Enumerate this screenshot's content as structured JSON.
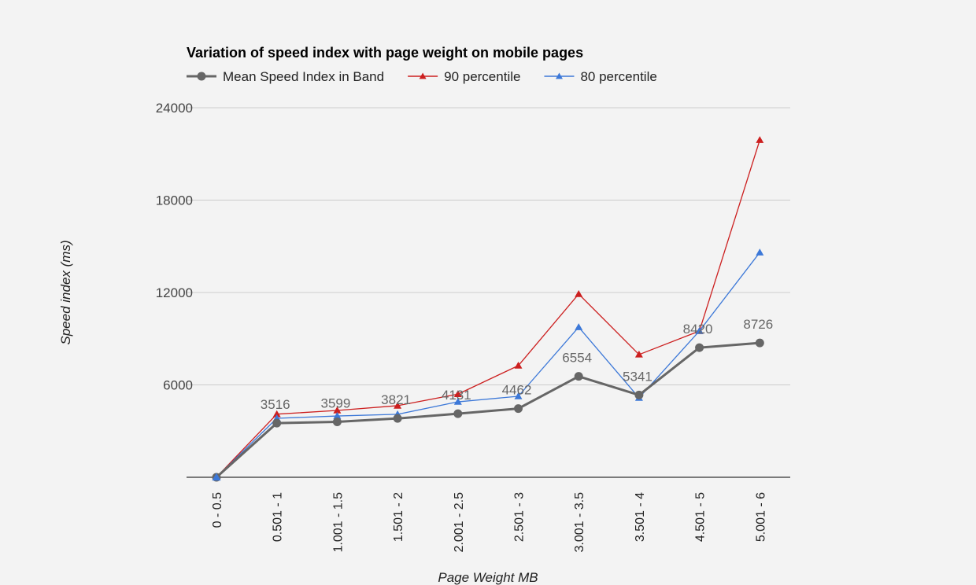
{
  "chart_data": {
    "type": "line",
    "title": "Variation of speed index with page weight on mobile pages",
    "xlabel": "Page Weight MB",
    "ylabel": "Speed index (ms)",
    "ylim": [
      0,
      24000
    ],
    "yticks": [
      6000,
      12000,
      18000,
      24000
    ],
    "grid": true,
    "legend": "top-left",
    "categories": [
      "0 - 0.5",
      "0.501 - 1",
      "1.001 - 1.5",
      "1.501 - 2",
      "2.001 - 2.5",
      "2.501 - 3",
      "3.001 - 3.5",
      "3.501 - 4",
      "4.501 - 5",
      "5.001 - 6"
    ],
    "series": [
      {
        "name": "90 percentile",
        "color": "#cc1f1f",
        "marker": "triangle",
        "values": [
          0,
          4100,
          4340,
          4650,
          5400,
          7250,
          11900,
          7970,
          9500,
          21900
        ]
      },
      {
        "name": "80 percentile",
        "color": "#3c78d8",
        "marker": "triangle",
        "values": [
          0,
          3830,
          3980,
          4090,
          4900,
          5260,
          9750,
          5160,
          9500,
          14600
        ]
      },
      {
        "name": "Mean Speed Index in Band",
        "color": "#666666",
        "marker": "circle",
        "values": [
          0,
          3516,
          3599,
          3821,
          4131,
          4462,
          6554,
          5341,
          8420,
          8726
        ],
        "data_labels": [
          "",
          "3516",
          "3599",
          "3821",
          "4131",
          "4462",
          "6554",
          "5341",
          "8420",
          "8726"
        ]
      }
    ],
    "legend_order": [
      "Mean Speed Index in Band",
      "90 percentile",
      "80 percentile"
    ]
  }
}
